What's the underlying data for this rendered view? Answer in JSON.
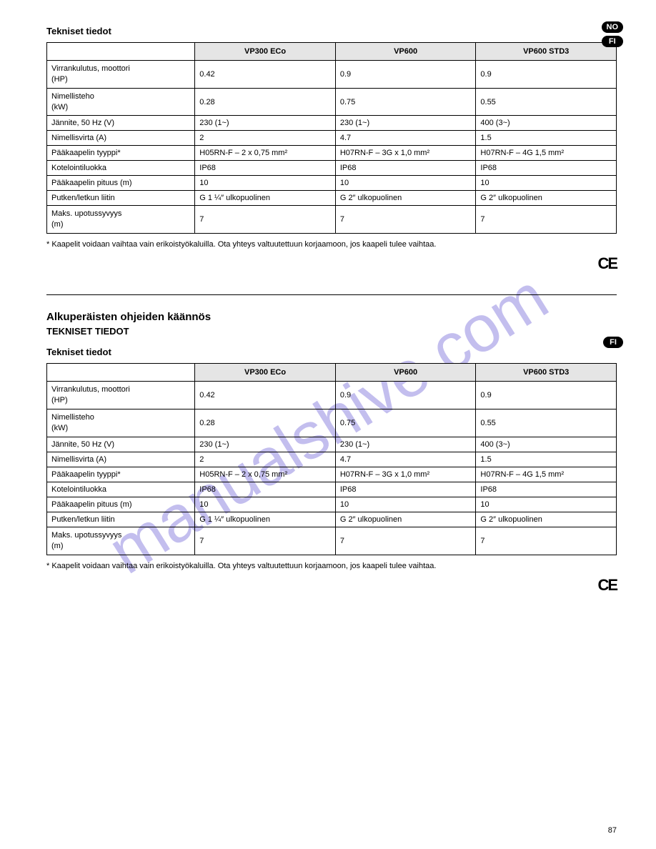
{
  "watermark_text": "manualshive.com",
  "page_number": "87",
  "lang_badges_top": [
    "NO",
    "FI"
  ],
  "lang_badge_mid": "FI",
  "ce_mark": "CE",
  "section1": {
    "title": "Tekniset tiedot",
    "models": [
      "VP300 ECo",
      "VP600",
      "VP600 STD3"
    ],
    "rows": [
      {
        "label_lines": [
          "Virrankulutus, moottori",
          "(HP)"
        ],
        "values": [
          "0.42",
          "0.9",
          "0.9"
        ]
      },
      {
        "label_lines": [
          "Nimellisteho",
          "(kW)"
        ],
        "values": [
          "0.28",
          "0.75",
          "0.55"
        ]
      },
      {
        "label_lines": [
          "Jännite, 50 Hz (V)"
        ],
        "values": [
          "230 (1~)",
          "230 (1~)",
          "400 (3~)"
        ]
      },
      {
        "label_lines": [
          "Nimellisvirta (A)"
        ],
        "values": [
          "2",
          "4.7",
          "1.5"
        ]
      },
      {
        "label_lines": [
          "Pääkaapelin tyyppi*"
        ],
        "values": [
          "H05RN-F – 2 x 0,75 mm²",
          "H07RN-F – 3G x 1,0 mm²",
          "H07RN-F – 4G 1,5 mm²"
        ]
      },
      {
        "label_lines": [
          "Kotelointiluokka"
        ],
        "values": [
          "IP68",
          "IP68",
          "IP68"
        ]
      },
      {
        "label_lines": [
          "Pääkaapelin pituus (m)"
        ],
        "values": [
          "10",
          "10",
          "10"
        ]
      },
      {
        "label_lines": [
          "Putken/letkun liitin"
        ],
        "values": [
          "G 1 ¼″ ulkopuolinen",
          "G 2″ ulkopuolinen",
          "G 2″ ulkopuolinen"
        ]
      },
      {
        "label_lines": [
          "Maks. upotussyvyys",
          "(m)"
        ],
        "values": [
          "7",
          "7",
          "7"
        ]
      }
    ],
    "note": "* Kaapelit voidaan vaihtaa vain erikoistyökaluilla. Ota yhteys valtuutettuun korjaamoon, jos kaapeli tulee vaihtaa."
  },
  "divider_present": true,
  "section2": {
    "heading1": "Alkuperäisten ohjeiden käännös",
    "heading2": "TEKNISET TIEDOT",
    "title": "Tekniset tiedot",
    "models": [
      "VP300 ECo",
      "VP600",
      "VP600 STD3"
    ],
    "rows": [
      {
        "label_lines": [
          "Virrankulutus, moottori",
          "(HP)"
        ],
        "values": [
          "0.42",
          "0.9",
          "0.9"
        ]
      },
      {
        "label_lines": [
          "Nimellisteho",
          "(kW)"
        ],
        "values": [
          "0.28",
          "0.75",
          "0.55"
        ]
      },
      {
        "label_lines": [
          "Jännite, 50 Hz (V)"
        ],
        "values": [
          "230 (1~)",
          "230 (1~)",
          "400 (3~)"
        ]
      },
      {
        "label_lines": [
          "Nimellisvirta (A)"
        ],
        "values": [
          "2",
          "4.7",
          "1.5"
        ]
      },
      {
        "label_lines": [
          "Pääkaapelin tyyppi*"
        ],
        "values": [
          "H05RN-F – 2 x 0,75 mm²",
          "H07RN-F – 3G x 1,0 mm²",
          "H07RN-F – 4G 1,5 mm²"
        ]
      },
      {
        "label_lines": [
          "Kotelointiluokka"
        ],
        "values": [
          "IP68",
          "IP68",
          "IP68"
        ]
      },
      {
        "label_lines": [
          "Pääkaapelin pituus (m)"
        ],
        "values": [
          "10",
          "10",
          "10"
        ]
      },
      {
        "label_lines": [
          "Putken/letkun liitin"
        ],
        "values": [
          "G 1 ¼″ ulkopuolinen",
          "G 2″ ulkopuolinen",
          "G 2″ ulkopuolinen"
        ]
      },
      {
        "label_lines": [
          "Maks. upotussyvyys",
          "(m)"
        ],
        "values": [
          "7",
          "7",
          "7"
        ]
      }
    ],
    "note": "* Kaapelit voidaan vaihtaa vain erikoistyökaluilla. Ota yhteys valtuutettuun korjaamoon, jos kaapeli tulee vaihtaa."
  }
}
